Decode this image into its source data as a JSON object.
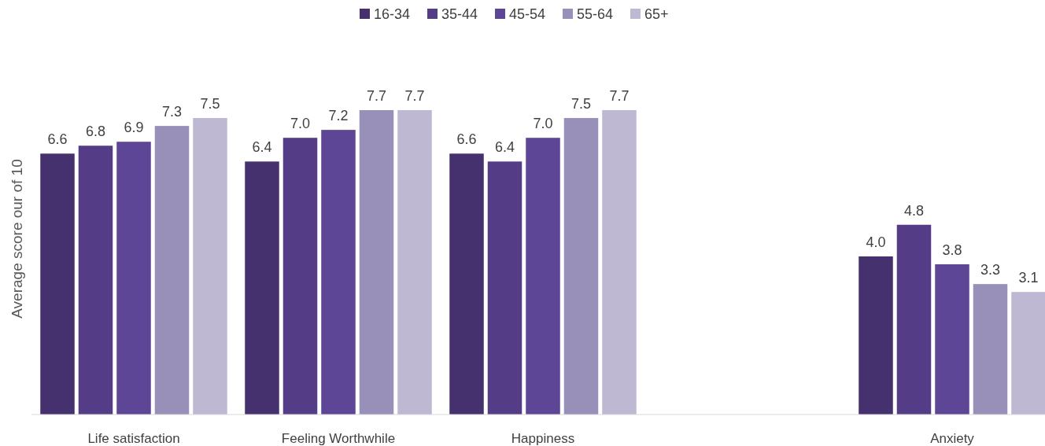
{
  "chart_data": {
    "type": "bar",
    "ylabel": "Average score our of 10",
    "categories": [
      "Life satisfaction",
      "Feeling Worthwhile",
      "Happiness",
      null,
      "Anxiety"
    ],
    "series": [
      {
        "name": "16-34",
        "color": "#45316e",
        "values": [
          6.6,
          6.4,
          6.6,
          null,
          4
        ],
        "value_labels": [
          "6.6",
          "6.4",
          "6.6",
          null,
          "4.0"
        ]
      },
      {
        "name": "35-44",
        "color": "#553c87",
        "values": [
          6.8,
          7,
          6.4,
          null,
          4.8
        ],
        "value_labels": [
          "6.8",
          "7.0",
          "6.4",
          null,
          "4.8"
        ]
      },
      {
        "name": "45-54",
        "color": "#5e4696",
        "values": [
          6.9,
          7.2,
          7,
          null,
          3.8
        ],
        "value_labels": [
          "6.9",
          "7.2",
          "7.0",
          null,
          "3.8"
        ]
      },
      {
        "name": "55-64",
        "color": "#9890b8",
        "values": [
          7.3,
          7.7,
          7.5,
          null,
          3.3
        ],
        "value_labels": [
          "7.3",
          "7.7",
          "7.5",
          null,
          "3.3"
        ]
      },
      {
        "name": "65+",
        "color": "#bfb8d3",
        "values": [
          7.5,
          7.7,
          7.7,
          null,
          3.1
        ],
        "value_labels": [
          "7.5",
          "7.7",
          "7.7",
          null,
          "3.1"
        ]
      }
    ],
    "legend": "top"
  }
}
